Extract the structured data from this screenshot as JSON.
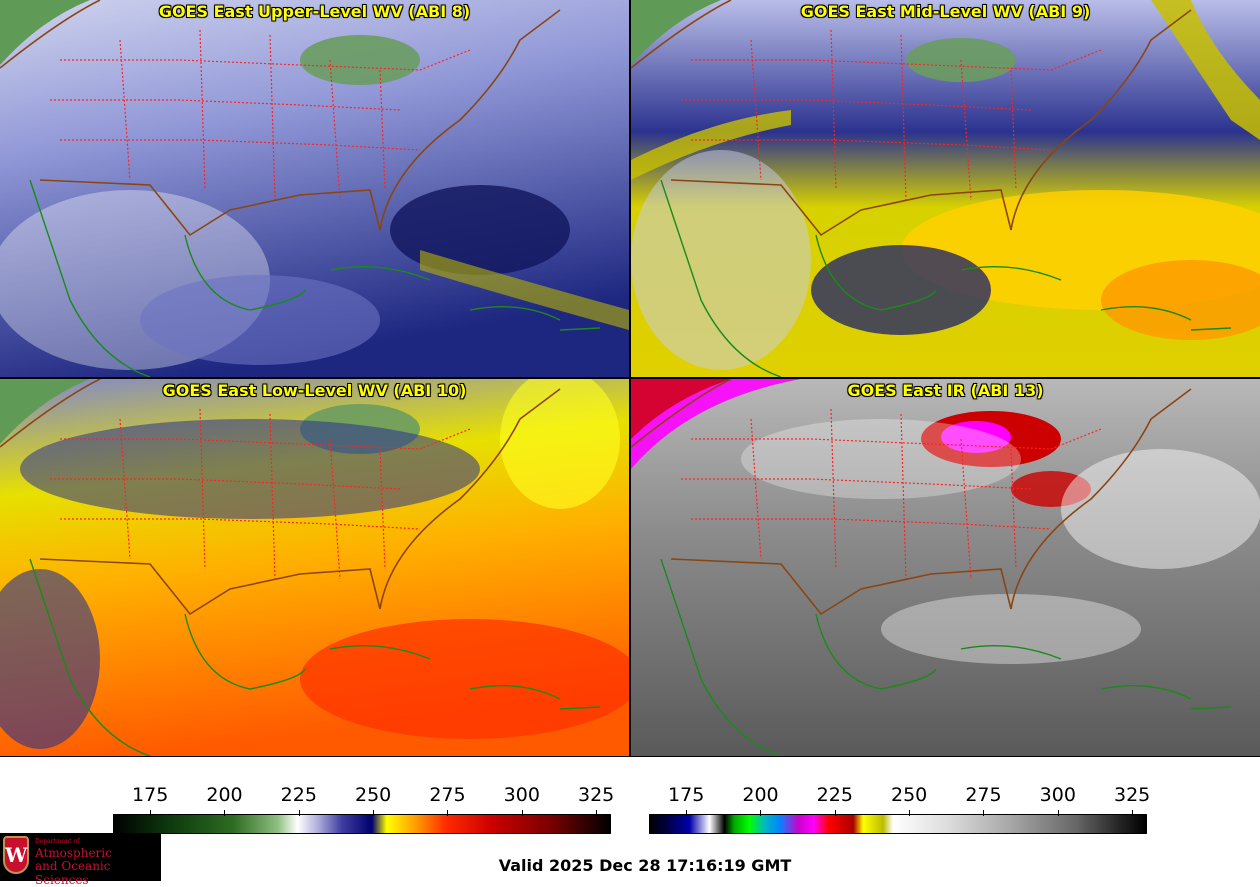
{
  "panels": [
    {
      "title": "GOES East Upper-Level WV (ABI 8)",
      "palette": "wv-dry"
    },
    {
      "title": "GOES East Mid-Level WV (ABI 9)",
      "palette": "wv-mid"
    },
    {
      "title": "GOES East Low-Level WV (ABI 10)",
      "palette": "wv-low"
    },
    {
      "title": "GOES East IR (ABI 13)",
      "palette": "ir"
    }
  ],
  "colorbars": {
    "left": {
      "ticks": [
        "175",
        "200",
        "225",
        "250",
        "275",
        "300",
        "325"
      ],
      "min": 162.5,
      "max": 330
    },
    "right": {
      "ticks": [
        "175",
        "200",
        "225",
        "250",
        "275",
        "300",
        "325"
      ],
      "min": 162.5,
      "max": 330
    }
  },
  "logo": {
    "dept": "Department of",
    "line1": "Atmospheric",
    "line2": "and Oceanic Sciences",
    "crest_letter": "W"
  },
  "valid_time": "Valid 2025 Dec 28 17:16:19 GMT",
  "colors": {
    "title": "#ffff00",
    "state_borders": "#ff2222",
    "coast": "#1a8a1a",
    "country": "#8b4513"
  }
}
